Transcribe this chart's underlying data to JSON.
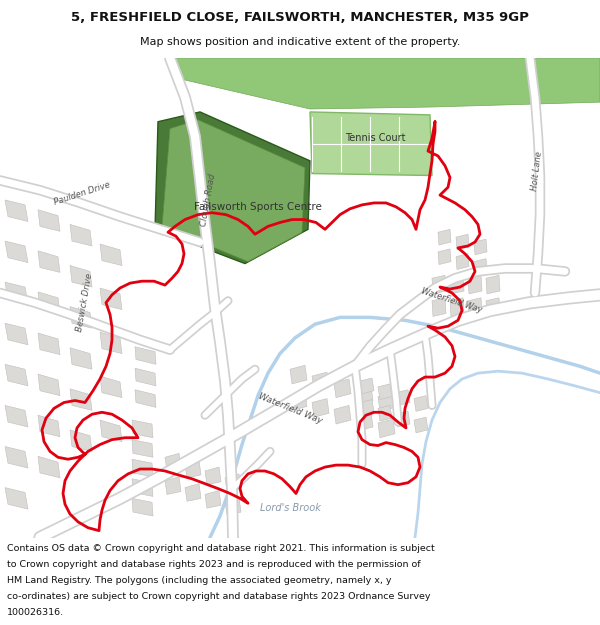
{
  "title_line1": "5, FRESHFIELD CLOSE, FAILSWORTH, MANCHESTER, M35 9GP",
  "title_line2": "Map shows position and indicative extent of the property.",
  "footer_text": "Contains OS data © Crown copyright and database right 2021. This information is subject to Crown copyright and database rights 2023 and is reproduced with the permission of HM Land Registry. The polygons (including the associated geometry, namely x, y co-ordinates) are subject to Crown copyright and database rights 2023 Ordnance Survey 100026316.",
  "map_bg": "#f0eeea",
  "road_color": "#ffffff",
  "road_outline": "#d0d0d0",
  "building_color": "#dcdad7",
  "building_outline": "#c0bebb",
  "green_sports": "#78b060",
  "green_light": "#a8d090",
  "river_color": "#aacce8",
  "red_boundary": "#e00010",
  "title_bg": "#ffffff",
  "footer_bg": "#ffffff",
  "label_color": "#555555"
}
